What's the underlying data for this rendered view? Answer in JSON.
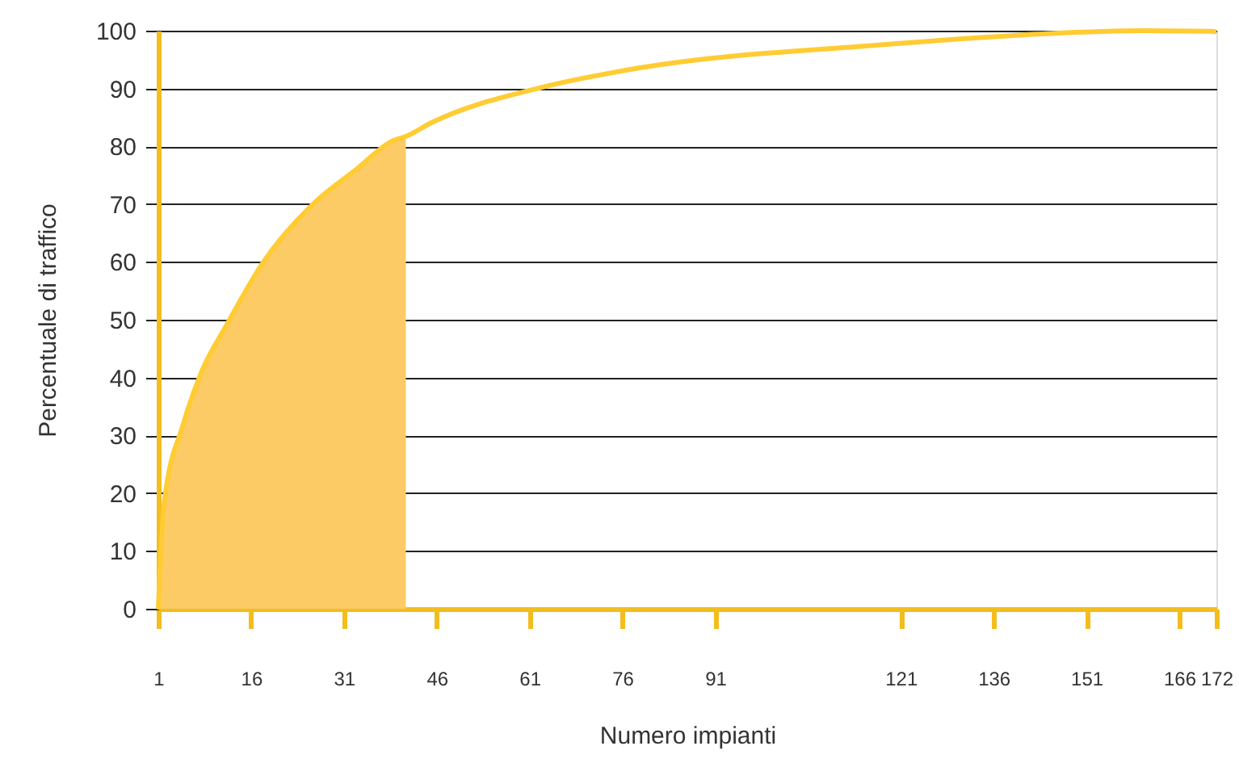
{
  "chart_data": {
    "type": "line",
    "xlabel": "Numero impianti",
    "ylabel": "Percentuale di traffico",
    "series": [
      {
        "type": "area",
        "color": "#fdcb66",
        "x": [
          1,
          2,
          5,
          8,
          12,
          18,
          26,
          33,
          39,
          41
        ],
        "values": [
          0,
          18.7,
          31.8,
          41,
          49,
          60,
          70,
          76,
          81,
          81.7
        ]
      },
      {
        "color": "#ffcc33",
        "x": [
          1,
          2,
          5,
          8,
          12,
          18,
          26,
          33,
          39,
          41,
          45,
          63,
          79,
          117,
          143,
          160,
          171.2,
          172
        ],
        "values": [
          0,
          18.7,
          31.8,
          41,
          49,
          60,
          70,
          76,
          81,
          81.7,
          84,
          90.2,
          93.6,
          97.5,
          99.4,
          100,
          99.9,
          99.8
        ]
      }
    ],
    "xlim": [
      1,
      172
    ],
    "xticks": [
      1,
      16,
      31,
      46,
      61,
      76,
      91,
      121,
      136,
      151,
      166,
      172
    ],
    "ylim": [
      0,
      100
    ],
    "yticks": [
      0,
      10,
      20,
      30,
      40,
      50,
      60,
      70,
      80,
      90,
      100
    ],
    "grid": "y"
  }
}
